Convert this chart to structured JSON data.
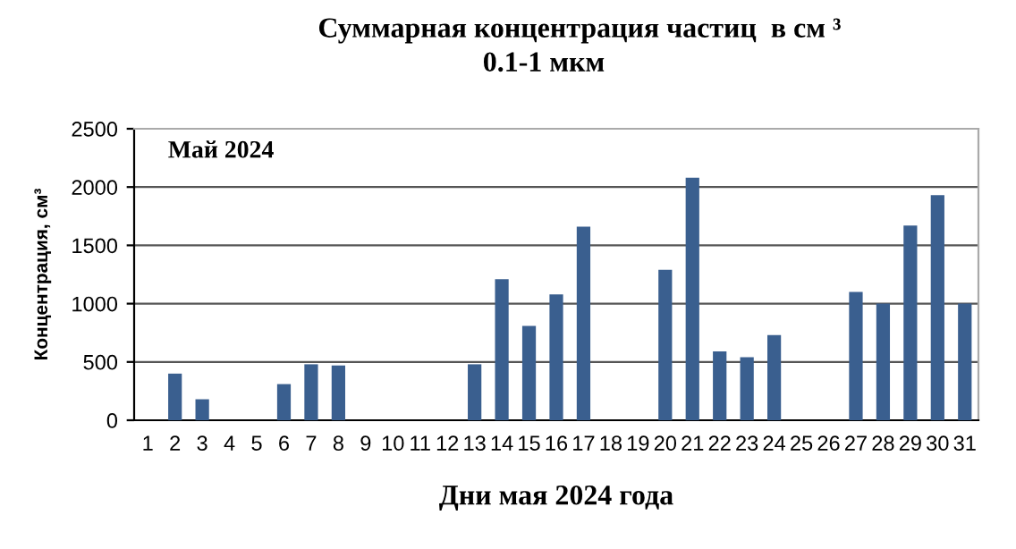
{
  "chart_data": {
    "type": "bar",
    "title": "Суммарная концентрация частиц  в см ³",
    "subtitle": "0.1-1 мкм",
    "xlabel": "Дни мая 2024 года",
    "ylabel": "Концентрация, см³",
    "annotations": [
      "Май 2024"
    ],
    "categories": [
      "1",
      "2",
      "3",
      "4",
      "5",
      "6",
      "7",
      "8",
      "9",
      "10",
      "11",
      "12",
      "13",
      "14",
      "15",
      "16",
      "17",
      "18",
      "19",
      "20",
      "21",
      "22",
      "23",
      "24",
      "25",
      "26",
      "27",
      "28",
      "29",
      "30",
      "31"
    ],
    "values": [
      null,
      400,
      180,
      null,
      null,
      310,
      480,
      470,
      null,
      null,
      null,
      null,
      480,
      1210,
      810,
      1080,
      1660,
      null,
      null,
      1290,
      2080,
      590,
      540,
      730,
      null,
      null,
      1100,
      1000,
      1670,
      1930,
      1000
    ],
    "color": "#3a5f8f",
    "ylim": [
      0,
      2500
    ],
    "yticks": [
      0,
      500,
      1000,
      1500,
      2000,
      2500
    ],
    "grid": "y",
    "legend": false
  }
}
